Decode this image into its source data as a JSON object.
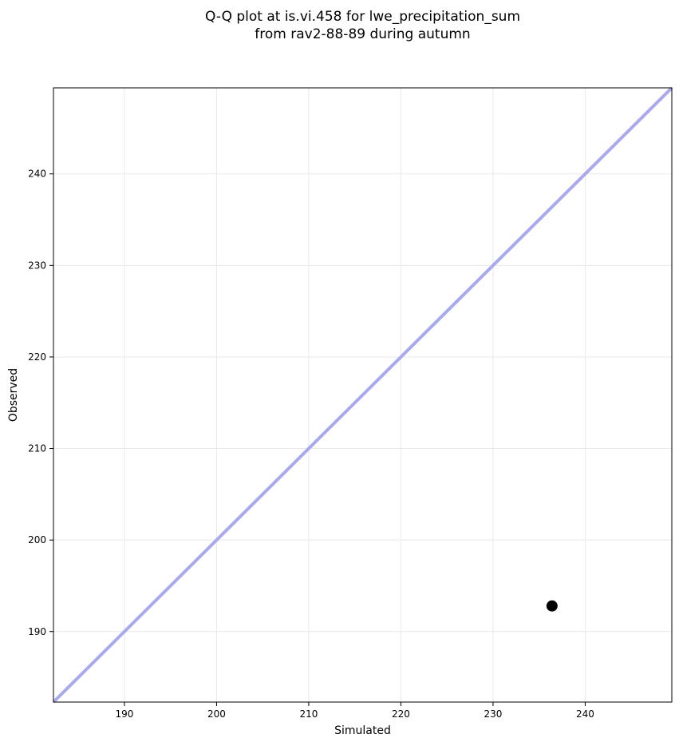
{
  "chart_data": {
    "type": "scatter",
    "title_line1": "Q-Q plot at is.vi.458 for lwe_precipitation_sum",
    "title_line2": "from rav2-88-89 during autumn",
    "xlabel": "Simulated",
    "ylabel": "Observed",
    "xlim": [
      182.3,
      249.4
    ],
    "ylim": [
      182.3,
      249.4
    ],
    "xticks": [
      190,
      200,
      210,
      220,
      230,
      240
    ],
    "yticks": [
      190,
      200,
      210,
      220,
      230,
      240
    ],
    "grid": true,
    "legend_position": "none",
    "grid_color": "#e9e9e9",
    "spine_color": "#000000",
    "series": [
      {
        "name": "observed-vs-simulated-quantiles",
        "marker": "circle",
        "color": "#000000",
        "marker_radius": 7,
        "points": [
          {
            "x": 236.4,
            "y": 192.8
          }
        ]
      }
    ],
    "reference_line": {
      "name": "identity-line",
      "x": [
        182.3,
        249.4
      ],
      "y": [
        182.3,
        249.4
      ],
      "color": "#a9a9ee",
      "width": 4
    }
  }
}
